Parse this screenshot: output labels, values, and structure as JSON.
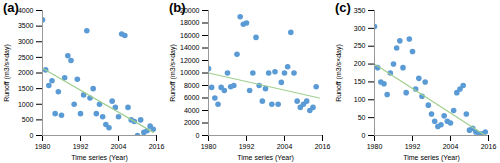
{
  "chart_data": [
    {
      "type": "scatter",
      "title": "(a)",
      "xlabel": "Time series (Year)",
      "ylabel": "Runoff (m3/s×day)",
      "xlim": [
        1980,
        2016
      ],
      "xticks": [
        1980,
        1992,
        2004,
        2016
      ],
      "ylim": [
        0,
        4000
      ],
      "yticks": [
        0,
        500,
        1000,
        1500,
        2000,
        2500,
        3000,
        3500,
        4000
      ],
      "series": [
        {
          "type": "scatter",
          "color": "#5b9bd5",
          "marker": "circle",
          "x": [
            1980,
            1981,
            1982,
            1983,
            1984,
            1985,
            1986,
            1987,
            1988,
            1989,
            1990,
            1991,
            1992,
            1993,
            1994,
            1995,
            1996,
            1997,
            1998,
            1999,
            2000,
            2001,
            2002,
            2003,
            2004,
            2005,
            2006,
            2007,
            2008,
            2009,
            2010,
            2011,
            2012,
            2013,
            2014,
            2015
          ],
          "values": [
            3700,
            2100,
            1600,
            1750,
            700,
            1400,
            650,
            1850,
            2550,
            2400,
            1000,
            1800,
            700,
            1300,
            3350,
            1200,
            1500,
            700,
            1000,
            600,
            350,
            250,
            1100,
            900,
            600,
            3250,
            3200,
            900,
            500,
            450,
            0,
            500,
            100,
            150,
            300,
            200
          ]
        },
        {
          "type": "line",
          "color": "#9fcf8f",
          "line_style": "solid",
          "x": [
            1980,
            2015
          ],
          "values": [
            2150,
            100
          ]
        }
      ]
    },
    {
      "type": "scatter",
      "title": "(b)",
      "xlabel": "Time series (Year)",
      "ylabel": "Runoff (m3/s×day)",
      "xlim": [
        1980,
        2016
      ],
      "xticks": [
        1980,
        1992,
        2004,
        2016
      ],
      "ylim": [
        0,
        20000
      ],
      "yticks": [
        0,
        2000,
        4000,
        6000,
        8000,
        10000,
        12000,
        14000,
        16000,
        18000,
        20000
      ],
      "series": [
        {
          "type": "scatter",
          "color": "#5b9bd5",
          "marker": "circle",
          "x": [
            1980,
            1981,
            1982,
            1983,
            1984,
            1985,
            1986,
            1987,
            1988,
            1989,
            1990,
            1991,
            1992,
            1993,
            1994,
            1995,
            1996,
            1997,
            1998,
            1999,
            2000,
            2001,
            2002,
            2003,
            2004,
            2005,
            2006,
            2007,
            2008,
            2009,
            2010,
            2011,
            2012,
            2013,
            2014
          ],
          "values": [
            10700,
            7700,
            6000,
            5000,
            7700,
            7200,
            10000,
            7800,
            8000,
            13000,
            19000,
            17800,
            18000,
            7200,
            10000,
            15700,
            8000,
            5500,
            7500,
            10000,
            5000,
            10200,
            5000,
            8500,
            10000,
            11000,
            16500,
            10000,
            5500,
            4500,
            5000,
            5500,
            4000,
            4500,
            7800
          ]
        },
        {
          "type": "line",
          "color": "#9fcf8f",
          "line_style": "solid",
          "x": [
            1980,
            2015
          ],
          "values": [
            10000,
            6000
          ]
        }
      ]
    },
    {
      "type": "scatter",
      "title": "(c)",
      "xlabel": "Time series (Year)",
      "ylabel": "Runoff (m3/s×day)",
      "xlim": [
        1980,
        2016
      ],
      "xticks": [
        1980,
        1992,
        2004,
        2016
      ],
      "ylim": [
        0,
        350
      ],
      "yticks": [
        0,
        50,
        100,
        150,
        200,
        250,
        300,
        350
      ],
      "series": [
        {
          "type": "scatter",
          "color": "#5b9bd5",
          "marker": "circle",
          "x": [
            1980,
            1981,
            1982,
            1983,
            1984,
            1985,
            1986,
            1987,
            1988,
            1989,
            1990,
            1991,
            1992,
            1993,
            1994,
            1995,
            1996,
            1997,
            1998,
            1999,
            2000,
            2001,
            2002,
            2003,
            2004,
            2005,
            2006,
            2007,
            2008,
            2009,
            2010,
            2011,
            2012,
            2013,
            2014,
            2015
          ],
          "values": [
            305,
            190,
            150,
            145,
            115,
            175,
            200,
            245,
            265,
            190,
            120,
            270,
            235,
            130,
            160,
            110,
            150,
            85,
            60,
            40,
            25,
            30,
            55,
            40,
            35,
            70,
            120,
            130,
            140,
            60,
            15,
            20,
            10,
            5,
            5,
            10
          ]
        },
        {
          "type": "line",
          "color": "#9fcf8f",
          "line_style": "solid",
          "x": [
            1980,
            2015
          ],
          "values": [
            200,
            0
          ]
        }
      ]
    }
  ]
}
